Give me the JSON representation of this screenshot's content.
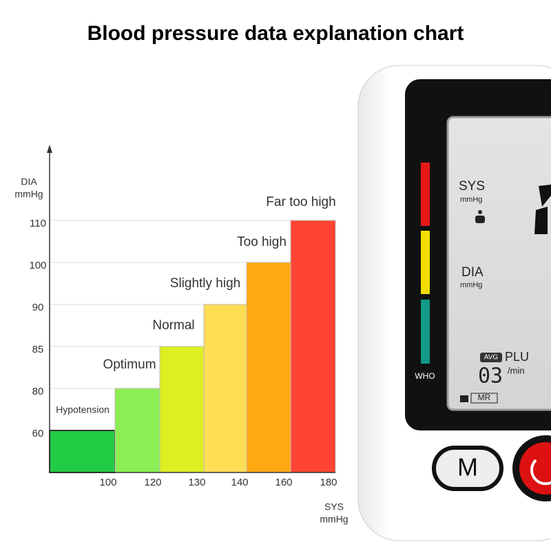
{
  "chart_data": {
    "type": "bar",
    "title": "Blood pressure data explanation chart",
    "categories": [
      "Hypotension",
      "Optimum",
      "Normal",
      "Slightly high",
      "Too high",
      "Far too high"
    ],
    "values": [
      60,
      80,
      85,
      90,
      100,
      110
    ],
    "colors": [
      "#22cc44",
      "#8cee55",
      "#ddee22",
      "#ffdd55",
      "#ffa812",
      "#ff4433"
    ],
    "yticks": [
      60,
      80,
      85,
      90,
      100,
      110
    ],
    "xticks": [
      100,
      120,
      130,
      140,
      160,
      180
    ],
    "y_label": [
      "DIA",
      "mmHg"
    ],
    "x_label": [
      "SYS",
      "mmHg"
    ],
    "grid": true
  },
  "device": {
    "who": "WHO",
    "sys": "SYS",
    "sys_unit": "mmHg",
    "dia": "DIA",
    "dia_unit": "mmHg",
    "avg": "AVG",
    "plu": "PLU",
    "pulse_count": "03",
    "per_min": "/min",
    "mr": "MR",
    "m_button": "M"
  }
}
